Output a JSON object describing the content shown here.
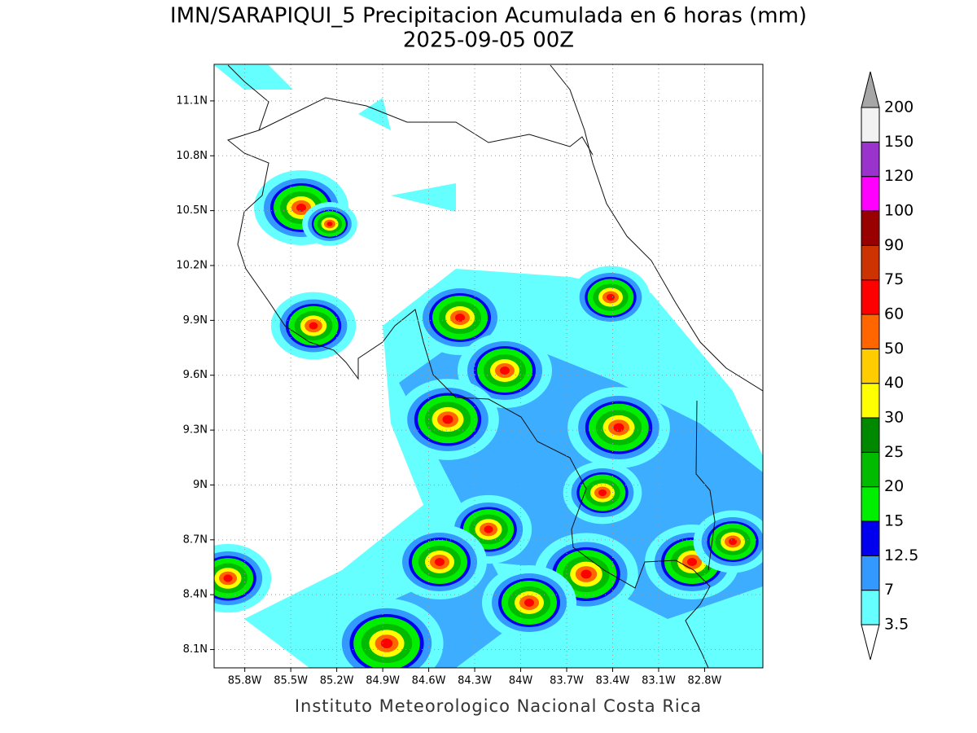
{
  "title": "IMN/SARAPIQUI_5 Precipitacion Acumulada en 6 horas (mm)",
  "subtitle": "2025-09-05 00Z",
  "map": {
    "xlim": [
      -86.0,
      -82.42
    ],
    "ylim": [
      8.0,
      11.3
    ],
    "grid": true,
    "xticks": [
      {
        "value": -85.8,
        "label": "85.8W"
      },
      {
        "value": -85.5,
        "label": "85.5W"
      },
      {
        "value": -85.2,
        "label": "85.2W"
      },
      {
        "value": -84.9,
        "label": "84.9W"
      },
      {
        "value": -84.6,
        "label": "84.6W"
      },
      {
        "value": -84.3,
        "label": "84.3W"
      },
      {
        "value": -84,
        "label": "84W"
      },
      {
        "value": -83.7,
        "label": "83.7W"
      },
      {
        "value": -83.4,
        "label": "83.4W"
      },
      {
        "value": -83.1,
        "label": "83.1W"
      },
      {
        "value": -82.8,
        "label": "82.8W"
      }
    ],
    "yticks": [
      {
        "value": 8.1,
        "label": "8.1N"
      },
      {
        "value": 8.4,
        "label": "8.4N"
      },
      {
        "value": 8.7,
        "label": "8.7N"
      },
      {
        "value": 9,
        "label": "9N"
      },
      {
        "value": 9.3,
        "label": "9.3N"
      },
      {
        "value": 9.6,
        "label": "9.6N"
      },
      {
        "value": 9.9,
        "label": "9.9N"
      },
      {
        "value": 10.2,
        "label": "10.2N"
      },
      {
        "value": 10.5,
        "label": "10.5N"
      },
      {
        "value": 10.8,
        "label": "10.8N"
      },
      {
        "value": 11.1,
        "label": "11.1N"
      }
    ]
  },
  "colorbar": {
    "levels": [
      3.5,
      7,
      12.5,
      15,
      20,
      25,
      30,
      40,
      50,
      60,
      75,
      90,
      100,
      120,
      150,
      200
    ],
    "colors": [
      "#ffffff",
      "#66ffff",
      "#3399ff",
      "#0000ee",
      "#00ee00",
      "#00bb00",
      "#008800",
      "#ffff00",
      "#ffcc00",
      "#ff6600",
      "#ff0000",
      "#cc3300",
      "#990000",
      "#ff00ff",
      "#9933cc",
      "#f2f2f2",
      "#a6a6a6"
    ]
  },
  "footer": "Instituto Meteorologico Nacional Costa Rica"
}
